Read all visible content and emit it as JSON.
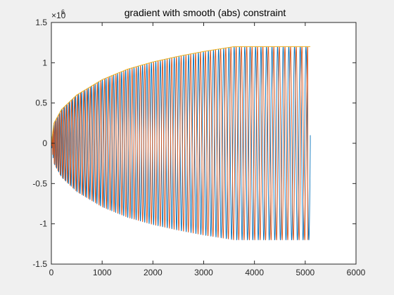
{
  "chart_data": {
    "type": "line",
    "title": "gradient with smooth (abs) constraint",
    "xlabel": "",
    "ylabel": "",
    "xlim": [
      0,
      6000
    ],
    "ylim": [
      -1500000,
      1500000
    ],
    "x_ticks": [
      0,
      1000,
      2000,
      3000,
      4000,
      5000,
      6000
    ],
    "x_tick_labels": [
      "0",
      "1000",
      "2000",
      "3000",
      "4000",
      "5000",
      "6000"
    ],
    "y_ticks": [
      -1500000,
      -1000000,
      -500000,
      0,
      500000,
      1000000,
      1500000
    ],
    "y_tick_labels": [
      "-1.5",
      "-1",
      "-0.5",
      "0",
      "0.5",
      "1",
      "1.5"
    ],
    "y_exponent_label": "×10",
    "y_exponent_power": "6",
    "grid": false,
    "legend": "none",
    "series": [
      {
        "color": "#0072BD",
        "kind": "oscillating",
        "x_end": 5100,
        "amplitude_envelope": {
          "x": [
            0,
            50,
            200,
            500,
            1000,
            1500,
            2000,
            2500,
            3000,
            3600,
            5100
          ],
          "y": [
            0,
            250000,
            420000,
            600000,
            790000,
            920000,
            1010000,
            1080000,
            1140000,
            1200000,
            1200000
          ]
        },
        "approx_cycles": 62,
        "end_value": 100000
      },
      {
        "color": "#D95319",
        "kind": "oscillating",
        "x_end": 5050,
        "amplitude_envelope": {
          "x": [
            0,
            50,
            200,
            500,
            1000,
            1500,
            2000,
            2500,
            3000,
            3600,
            5050
          ],
          "y": [
            0,
            250000,
            420000,
            600000,
            790000,
            920000,
            1010000,
            1080000,
            1140000,
            1200000,
            1200000
          ]
        },
        "approx_cycles": 62,
        "end_value": -1200000
      },
      {
        "color": "#EDB120",
        "kind": "envelope",
        "x": [
          0,
          50,
          200,
          500,
          1000,
          1500,
          2000,
          2500,
          3000,
          3600,
          5100
        ],
        "y": [
          0,
          250000,
          420000,
          600000,
          790000,
          920000,
          1010000,
          1080000,
          1140000,
          1200000,
          1200000
        ]
      }
    ]
  }
}
